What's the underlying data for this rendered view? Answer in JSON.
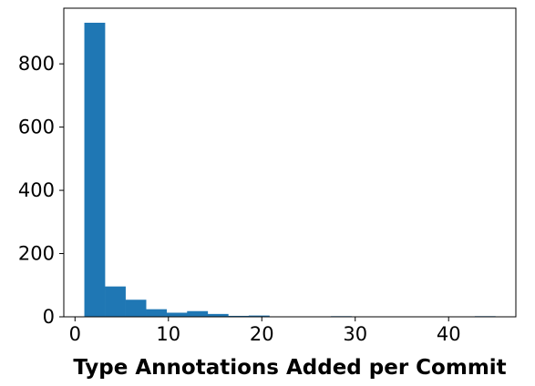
{
  "chart_data": {
    "type": "bar",
    "subtype": "histogram",
    "title": "",
    "xlabel": "Type Annotations Added per Commit",
    "ylabel": "",
    "bins": [
      {
        "start": 1.0,
        "end": 3.2,
        "count": 930
      },
      {
        "start": 3.2,
        "end": 5.4,
        "count": 96
      },
      {
        "start": 5.4,
        "end": 7.6,
        "count": 54
      },
      {
        "start": 7.6,
        "end": 9.8,
        "count": 24
      },
      {
        "start": 9.8,
        "end": 12.0,
        "count": 13
      },
      {
        "start": 12.0,
        "end": 14.2,
        "count": 18
      },
      {
        "start": 14.2,
        "end": 16.4,
        "count": 9
      },
      {
        "start": 16.4,
        "end": 18.6,
        "count": 3
      },
      {
        "start": 18.6,
        "end": 20.8,
        "count": 4
      },
      {
        "start": 20.8,
        "end": 23.0,
        "count": 1
      },
      {
        "start": 23.0,
        "end": 25.2,
        "count": 1
      },
      {
        "start": 25.2,
        "end": 27.4,
        "count": 0
      },
      {
        "start": 27.4,
        "end": 29.6,
        "count": 2
      },
      {
        "start": 29.6,
        "end": 31.8,
        "count": 0
      },
      {
        "start": 31.8,
        "end": 34.0,
        "count": 0
      },
      {
        "start": 34.0,
        "end": 36.2,
        "count": 0
      },
      {
        "start": 36.2,
        "end": 38.4,
        "count": 0
      },
      {
        "start": 38.4,
        "end": 40.6,
        "count": 0
      },
      {
        "start": 40.6,
        "end": 42.8,
        "count": 0
      },
      {
        "start": 42.8,
        "end": 45.0,
        "count": 2
      }
    ],
    "xlim": [
      -1.2,
      47.2
    ],
    "ylim": [
      0,
      976
    ],
    "xticks": [
      0,
      10,
      20,
      30,
      40
    ],
    "yticks": [
      0,
      200,
      400,
      600,
      800
    ],
    "bar_color": "#1f77b4",
    "grid": false,
    "legend": false
  }
}
